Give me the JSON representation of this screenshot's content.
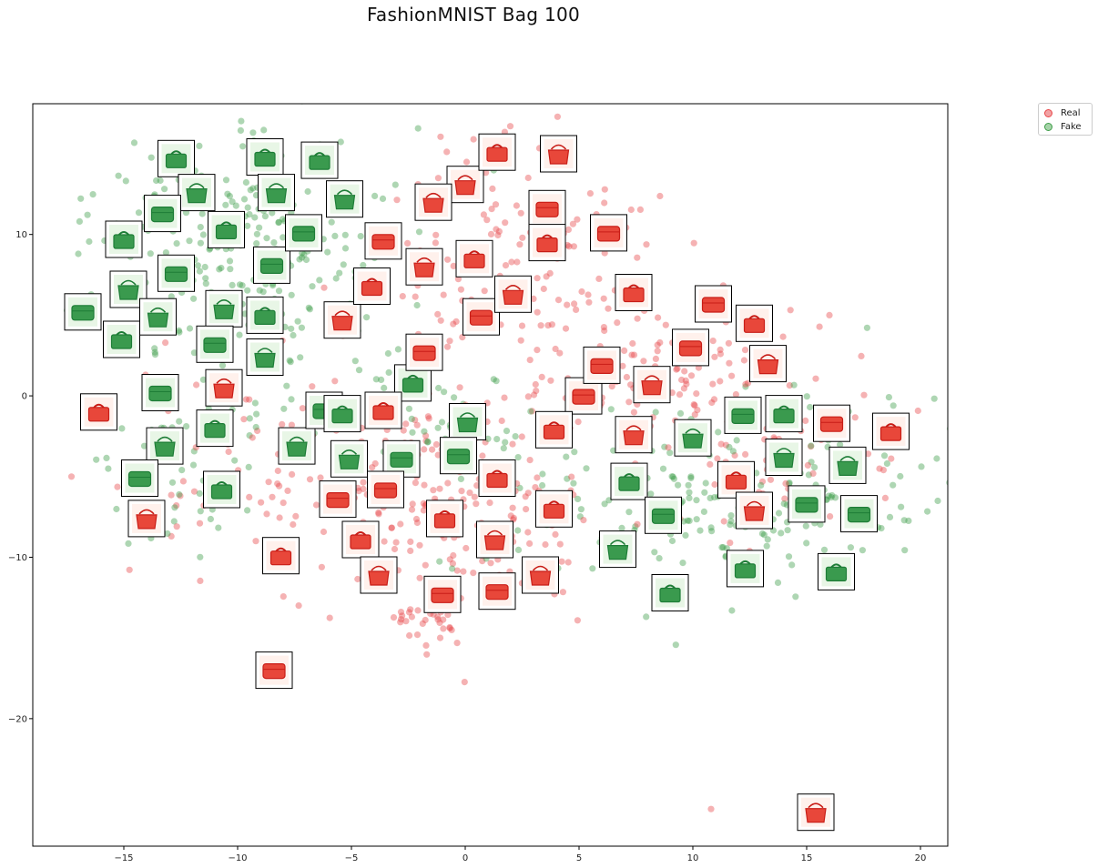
{
  "chart_data": {
    "type": "scatter",
    "title": "FashionMNIST Bag 100",
    "xlabel": "",
    "ylabel": "",
    "xlim": [
      -19,
      21.2
    ],
    "ylim": [
      -27.9,
      18.1
    ],
    "xticks": [
      -15,
      -10,
      -5,
      0,
      5,
      10,
      15,
      20
    ],
    "yticks": [
      -20,
      -10,
      0,
      10
    ],
    "legend_position": "outside-top-right",
    "grid": false,
    "series": [
      {
        "name": "Real",
        "color": "#e8474a",
        "clusters": [
          {
            "cx": 2.0,
            "cy": 8.5,
            "sx": 3.2,
            "sy": 4.0,
            "n": 150
          },
          {
            "cx": 0.0,
            "cy": -8.0,
            "sx": 3.2,
            "sy": 3.0,
            "n": 130
          },
          {
            "cx": -4.0,
            "cy": -4.5,
            "sx": 3.0,
            "sy": 3.2,
            "n": 110
          },
          {
            "cx": 8.5,
            "cy": 1.5,
            "sx": 3.0,
            "sy": 2.5,
            "n": 110
          },
          {
            "cx": 13.5,
            "cy": -3.5,
            "sx": 3.0,
            "sy": 2.5,
            "n": 70
          },
          {
            "cx": -12.0,
            "cy": -3.5,
            "sx": 2.5,
            "sy": 3.0,
            "n": 35
          },
          {
            "cx": -1.5,
            "cy": -13.8,
            "sx": 1.0,
            "sy": 0.6,
            "n": 30
          }
        ],
        "outliers": [
          [
            -17.3,
            -5.0
          ],
          [
            10.8,
            -25.6
          ],
          [
            -9.2,
            -9.0
          ],
          [
            -6.2,
            6.7
          ],
          [
            -16.0,
            -0.6
          ],
          [
            16.0,
            5.0
          ]
        ]
      },
      {
        "name": "Fake",
        "color": "#3f9e4a",
        "clusters": [
          {
            "cx": -10.0,
            "cy": 9.0,
            "sx": 3.2,
            "sy": 4.0,
            "n": 260
          },
          {
            "cx": -11.5,
            "cy": -3.0,
            "sx": 2.0,
            "sy": 3.0,
            "n": 60
          },
          {
            "cx": 11.0,
            "cy": -6.0,
            "sx": 5.0,
            "sy": 3.0,
            "n": 220
          },
          {
            "cx": -3.0,
            "cy": -2.0,
            "sx": 1.8,
            "sy": 1.8,
            "n": 30
          },
          {
            "cx": 0.5,
            "cy": -2.5,
            "sx": 1.2,
            "sy": 1.4,
            "n": 20
          }
        ],
        "outliers": [
          [
            -17.0,
            8.8
          ],
          [
            -17.5,
            5.3
          ]
        ]
      }
    ],
    "thumbnails": {
      "real": [
        [
          -16.1,
          -1.0
        ],
        [
          -14.0,
          -7.6
        ],
        [
          -8.4,
          -17.0
        ],
        [
          -8.1,
          -9.9
        ],
        [
          -10.6,
          0.5
        ],
        [
          -5.6,
          -6.4
        ],
        [
          -4.6,
          -8.9
        ],
        [
          -3.8,
          -11.1
        ],
        [
          -3.5,
          -5.8
        ],
        [
          -3.6,
          -0.9
        ],
        [
          -5.4,
          4.7
        ],
        [
          -3.6,
          9.6
        ],
        [
          -4.1,
          6.8
        ],
        [
          -1.8,
          8.0
        ],
        [
          -1.8,
          2.7
        ],
        [
          0.4,
          8.5
        ],
        [
          0.0,
          13.1
        ],
        [
          0.7,
          4.9
        ],
        [
          1.4,
          15.1
        ],
        [
          2.1,
          6.3
        ],
        [
          3.6,
          11.6
        ],
        [
          3.6,
          9.5
        ],
        [
          4.1,
          15.0
        ],
        [
          6.3,
          10.1
        ],
        [
          1.4,
          -5.1
        ],
        [
          1.3,
          -8.9
        ],
        [
          1.4,
          -12.1
        ],
        [
          3.9,
          -7.0
        ],
        [
          3.3,
          -11.1
        ],
        [
          -1.0,
          -12.3
        ],
        [
          -0.9,
          -7.6
        ],
        [
          -1.4,
          12.0
        ],
        [
          5.2,
          0.0
        ],
        [
          7.4,
          6.4
        ],
        [
          8.2,
          0.7
        ],
        [
          6.0,
          1.9
        ],
        [
          3.9,
          -2.1
        ],
        [
          7.4,
          -2.4
        ],
        [
          10.9,
          5.7
        ],
        [
          12.7,
          4.5
        ],
        [
          13.3,
          2.0
        ],
        [
          9.9,
          3.0
        ],
        [
          11.9,
          -5.2
        ],
        [
          12.7,
          -7.1
        ],
        [
          16.1,
          -1.7
        ],
        [
          18.7,
          -2.2
        ],
        [
          15.4,
          -25.8
        ]
      ],
      "fake": [
        [
          -12.7,
          14.7
        ],
        [
          -11.8,
          12.6
        ],
        [
          -13.3,
          11.3
        ],
        [
          -15.0,
          9.7
        ],
        [
          -14.8,
          6.6
        ],
        [
          -16.8,
          5.2
        ],
        [
          -15.1,
          3.5
        ],
        [
          -13.5,
          4.9
        ],
        [
          -12.7,
          7.6
        ],
        [
          -10.5,
          10.3
        ],
        [
          -10.6,
          5.4
        ],
        [
          -11.0,
          3.2
        ],
        [
          -8.8,
          14.8
        ],
        [
          -8.3,
          12.6
        ],
        [
          -8.5,
          8.1
        ],
        [
          -8.8,
          5.0
        ],
        [
          -8.8,
          2.4
        ],
        [
          -7.1,
          10.1
        ],
        [
          -6.4,
          14.6
        ],
        [
          -5.3,
          12.2
        ],
        [
          -13.4,
          0.2
        ],
        [
          -11.0,
          -2.0
        ],
        [
          -13.2,
          -3.1
        ],
        [
          -14.3,
          -5.1
        ],
        [
          -10.7,
          -5.8
        ],
        [
          -7.4,
          -3.1
        ],
        [
          -6.2,
          -0.9
        ],
        [
          -5.4,
          -1.1
        ],
        [
          -5.1,
          -3.9
        ],
        [
          -2.8,
          -3.9
        ],
        [
          -2.3,
          0.8
        ],
        [
          0.1,
          -1.6
        ],
        [
          -0.3,
          -3.7
        ],
        [
          7.2,
          -5.3
        ],
        [
          6.7,
          -9.5
        ],
        [
          8.7,
          -7.4
        ],
        [
          9.0,
          -12.2
        ],
        [
          10.0,
          -2.6
        ],
        [
          12.2,
          -1.2
        ],
        [
          14.0,
          -1.1
        ],
        [
          14.0,
          -3.8
        ],
        [
          15.0,
          -6.7
        ],
        [
          12.3,
          -10.7
        ],
        [
          16.8,
          -4.3
        ],
        [
          17.3,
          -7.3
        ],
        [
          16.3,
          -10.9
        ]
      ]
    }
  }
}
